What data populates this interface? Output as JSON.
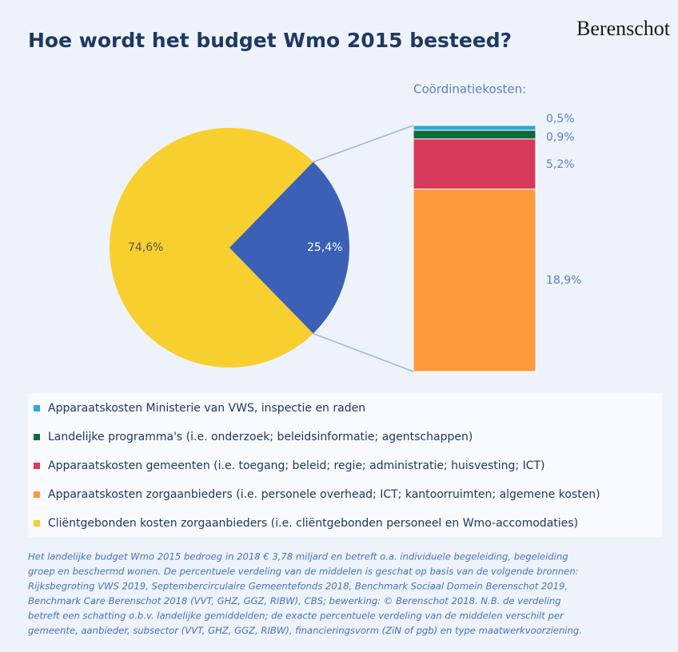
{
  "chart_data": {
    "type": "pie",
    "title": "Hoe wordt het budget Wmo 2015 besteed?",
    "brand": "Berenschot",
    "bar_title": "Coördinatiekosten:",
    "pie": {
      "name": "Cliëntgebonden kosten zorgaanbieders (i.e. cliëntgebonden personeel en Wmo-accomodaties)",
      "color": "#f7cf2e",
      "value": 74.6,
      "value_label": "74,6%"
    },
    "other": {
      "color": "#3b60b5",
      "value": 25.4,
      "value_label": "25,4%"
    },
    "segments": [
      {
        "name": "Apparaatskosten Ministerie van VWS, inspectie en raden",
        "color": "#2ea6d3",
        "value": 0.5,
        "value_label": "0,5%"
      },
      {
        "name": "Landelijke programma's (i.e. onderzoek; beleidsinformatie; agentschappen)",
        "color": "#0e6a3a",
        "value": 0.9,
        "value_label": "0,9%"
      },
      {
        "name": "Apparaatskosten gemeenten (i.e. toegang; beleid; regie; administratie; huisvesting; ICT)",
        "color": "#d83a5c",
        "value": 5.2,
        "value_label": "5,2%"
      },
      {
        "name": "Apparaatskosten zorgaanbieders (i.e. personele overhead; ICT; kantoorruimten; algemene kosten)",
        "color": "#fd9a3c",
        "value": 18.9,
        "value_label": "18,9%"
      }
    ],
    "note": [
      "Het landelijke budget Wmo 2015 bedroeg in 2018 € 3,78 miljard en betreft o.a. individuele begeleiding, begeleiding",
      "groep en beschermd wonen. De percentuele verdeling van de middelen is geschat op basis van de volgende bronnen:",
      "Rijksbegroting VWS 2019, Septembercirculaire Gemeentefonds 2018, Benchmark Sociaal Domein Berenschot 2019,",
      "Benchmark Care Berenschot 2018 (VVT, GHZ, GGZ, RIBW), CBS; bewerking: © Berenschot 2018. N.B. de verdeling",
      "betreft een schatting o.b.v. landelijke gemiddelden; de exacte percentuele verdeling van de middelen verschilt per",
      "gemeente, aanbieder, subsector (VVT, GHZ, GGZ, RIBW), financieringsvorm (ZiN of pgb) en type maatwerkvoorziening."
    ]
  }
}
